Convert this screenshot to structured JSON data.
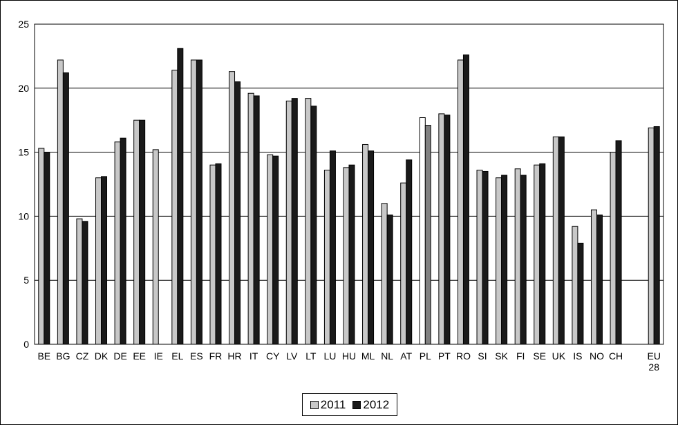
{
  "chart_data": {
    "type": "bar",
    "categories": [
      "BE",
      "BG",
      "CZ",
      "DK",
      "DE",
      "EE",
      "IE",
      "EL",
      "ES",
      "FR",
      "HR",
      "IT",
      "CY",
      "LV",
      "LT",
      "LU",
      "HU",
      "ML",
      "NL",
      "AT",
      "PL",
      "PT",
      "RO",
      "SI",
      "SK",
      "FI",
      "SE",
      "UK",
      "IS",
      "NO",
      "CH",
      "",
      "EU 28"
    ],
    "series": [
      {
        "name": "2011",
        "color": "#c8c8c8",
        "values": [
          15.3,
          22.2,
          9.8,
          13.0,
          15.8,
          17.5,
          15.2,
          21.4,
          22.2,
          14.0,
          21.3,
          19.6,
          14.8,
          19.0,
          19.2,
          13.6,
          13.8,
          15.6,
          11.0,
          12.6,
          17.7,
          18.0,
          22.2,
          13.6,
          13.0,
          13.7,
          14.0,
          16.2,
          9.2,
          10.5,
          15.0,
          null,
          16.9
        ]
      },
      {
        "name": "2012",
        "color": "#1a1a1a",
        "values": [
          15.0,
          21.2,
          9.6,
          13.1,
          16.1,
          17.5,
          null,
          23.1,
          22.2,
          14.1,
          20.5,
          19.4,
          14.7,
          19.2,
          18.6,
          15.1,
          14.0,
          15.1,
          10.1,
          14.4,
          17.1,
          17.9,
          22.6,
          13.5,
          13.2,
          13.2,
          14.1,
          16.2,
          7.9,
          10.1,
          15.9,
          null,
          17.0
        ]
      }
    ],
    "ylim": [
      0,
      25
    ],
    "yticks": [
      0,
      5,
      10,
      15,
      20,
      25
    ],
    "grid": true,
    "legend_position": "bottom",
    "notes": {
      "pl_2011_bar_fill": "#ffffff",
      "pl_2012_bar_fill": "#808080"
    }
  }
}
